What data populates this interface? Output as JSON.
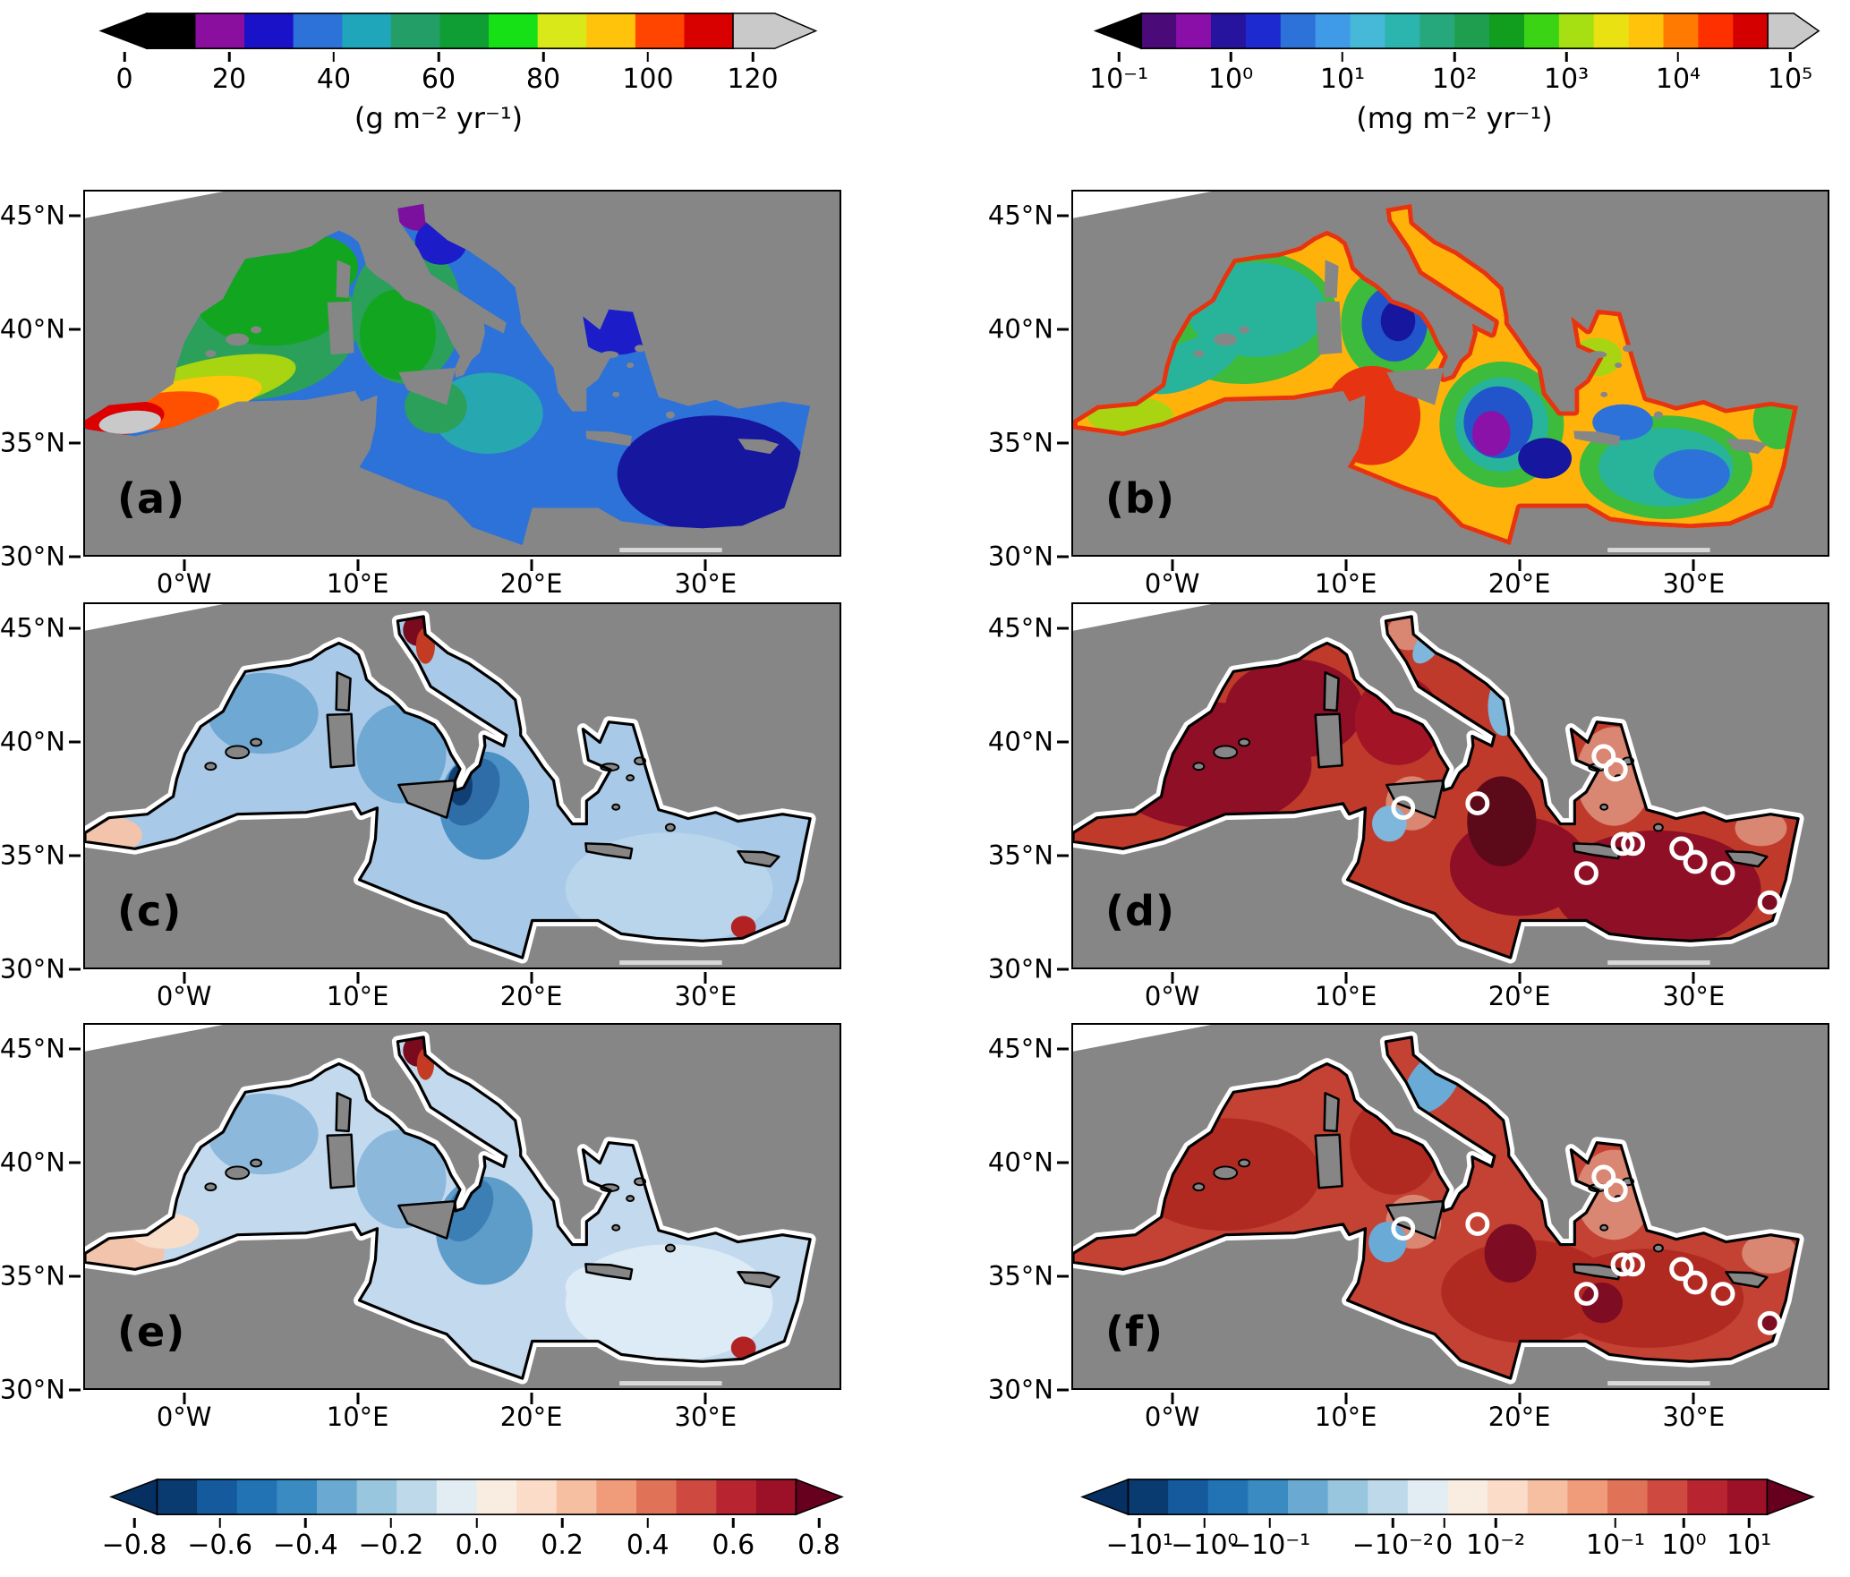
{
  "chart_data": {
    "type": "heatmap",
    "description": "Six-panel geographic raster maps of the Mediterranean Sea with four colorbars",
    "axes": {
      "x_ticks": [
        {
          "label": "0°W",
          "pos": 13.3
        },
        {
          "label": "10°E",
          "pos": 36.2
        },
        {
          "label": "20°E",
          "pos": 59.1
        },
        {
          "label": "30°E",
          "pos": 82.1
        }
      ],
      "y_ticks": [
        {
          "label": "45°N",
          "pos": 7.1
        },
        {
          "label": "40°N",
          "pos": 38.0
        },
        {
          "label": "35°N",
          "pos": 69.0
        },
        {
          "label": "30°N",
          "pos": 100.0
        }
      ]
    },
    "colorbars": {
      "top_left": {
        "units": "(g m⁻² yr⁻¹)",
        "range": [
          0,
          120
        ],
        "extend_under": "#000000",
        "extend_over": "#c9c9c9",
        "ticks": [
          {
            "label": "0",
            "pos": 0
          },
          {
            "label": "20",
            "pos": 16.67
          },
          {
            "label": "40",
            "pos": 33.33
          },
          {
            "label": "60",
            "pos": 50
          },
          {
            "label": "80",
            "pos": 66.67
          },
          {
            "label": "100",
            "pos": 83.33
          },
          {
            "label": "120",
            "pos": 100
          }
        ],
        "colors": [
          "#000000",
          "#8a0f9e",
          "#1a12c8",
          "#2d72d9",
          "#1fa6bb",
          "#239e66",
          "#0f9e33",
          "#16e016",
          "#d8e818",
          "#ffc30b",
          "#ff4500",
          "#d90000"
        ]
      },
      "top_right": {
        "units": "(mg m⁻² yr⁻¹)",
        "range_log10": [
          -1,
          5
        ],
        "extend_under": "#000000",
        "extend_over": "#c9c9c9",
        "ticks": [
          {
            "label": "10⁻¹",
            "pos": 0
          },
          {
            "label": "10⁰",
            "pos": 16.67
          },
          {
            "label": "10¹",
            "pos": 33.33
          },
          {
            "label": "10²",
            "pos": 50
          },
          {
            "label": "10³",
            "pos": 66.67
          },
          {
            "label": "10⁴",
            "pos": 83.33
          },
          {
            "label": "10⁵",
            "pos": 100
          }
        ],
        "colors": [
          "#4a0a78",
          "#8a0fa8",
          "#26139e",
          "#1c2ad0",
          "#2d72d9",
          "#3f9be8",
          "#46b8d8",
          "#2cb4ae",
          "#27a87c",
          "#1e9e4e",
          "#119e1e",
          "#3ad414",
          "#a6e013",
          "#eae112",
          "#ffc30b",
          "#ff7a00",
          "#ff3000",
          "#d40000"
        ]
      },
      "bottom_left": {
        "units": "",
        "range": [
          -0.8,
          0.8
        ],
        "extend_under": "#053061",
        "extend_over": "#67001f",
        "ticks": [
          {
            "label": "−0.8",
            "pos": 0
          },
          {
            "label": "−0.6",
            "pos": 12.5
          },
          {
            "label": "−0.4",
            "pos": 25
          },
          {
            "label": "−0.2",
            "pos": 37.5
          },
          {
            "label": "0.0",
            "pos": 50
          },
          {
            "label": "0.2",
            "pos": 62.5
          },
          {
            "label": "0.4",
            "pos": 75
          },
          {
            "label": "0.6",
            "pos": 87.5
          },
          {
            "label": "0.8",
            "pos": 100
          }
        ],
        "colors": [
          "#0a3b70",
          "#155a9c",
          "#2273b4",
          "#3a8bc2",
          "#6aaad2",
          "#97c6de",
          "#bedaea",
          "#e1edf3",
          "#f9ece1",
          "#fbdcc9",
          "#f7bfa1",
          "#f09c7b",
          "#e07258",
          "#ce4a41",
          "#b82531",
          "#9c1127"
        ]
      },
      "bottom_right": {
        "units": "",
        "scale": "symlog",
        "extend_under": "#053061",
        "extend_over": "#67001f",
        "ticks": [
          {
            "label": "−10¹",
            "pos": 5
          },
          {
            "label": "−10⁰",
            "pos": 14.5
          },
          {
            "label": "−10⁻¹",
            "pos": 24
          },
          {
            "label": "−10⁻²",
            "pos": 42
          },
          {
            "label": "0",
            "pos": 49.5
          },
          {
            "label": "10⁻²",
            "pos": 57
          },
          {
            "label": "10⁻¹",
            "pos": 74.5
          },
          {
            "label": "10⁰",
            "pos": 84.5
          },
          {
            "label": "10¹",
            "pos": 94
          }
        ],
        "colors": [
          "#0a3b70",
          "#155a9c",
          "#2273b4",
          "#3a8bc2",
          "#6aaad2",
          "#97c6de",
          "#bedaea",
          "#e1edf3",
          "#f9ece1",
          "#fbdcc9",
          "#f7bfa1",
          "#f09c7b",
          "#e07258",
          "#ce4a41",
          "#b82531",
          "#9c1127"
        ]
      },
      "panels": null
    },
    "panels_note": "patches = [lon, lat, rx_deg_lon, ry_deg_lat, color, rotation_deg]; markers = [lon, lat, filled]",
    "panels": [
      {
        "label": "(a)",
        "colorbar": "top_left",
        "base": "#2d72d9",
        "coast": false,
        "ring": null,
        "patches": [
          [
            3.5,
            40.3,
            6.5,
            3.4,
            "#2aa05a",
            0
          ],
          [
            5,
            41.5,
            4.5,
            2.2,
            "#12a51f",
            0
          ],
          [
            7.5,
            42.8,
            2.5,
            1.4,
            "#12a51f",
            0
          ],
          [
            12.8,
            40.8,
            3.2,
            3.2,
            "#2aa05a",
            0
          ],
          [
            12.3,
            39.8,
            2.2,
            2.0,
            "#12a51f",
            0
          ],
          [
            1.5,
            37.6,
            5.0,
            1.1,
            "#a8d411",
            -12
          ],
          [
            0,
            36.9,
            4.5,
            0.9,
            "#ffc40c",
            -10
          ],
          [
            -1.5,
            36.4,
            3.5,
            0.8,
            "#ff5000",
            -8
          ],
          [
            -3.6,
            36.1,
            2.4,
            0.75,
            "#dc0000",
            -6
          ],
          [
            -3.2,
            35.9,
            1.8,
            0.5,
            "#c9c9c9",
            -6
          ],
          [
            13.6,
            45.2,
            1.4,
            0.8,
            "#7b0f9e",
            0
          ],
          [
            14.8,
            43.9,
            1.5,
            1.0,
            "#1c1cc8",
            0
          ],
          [
            17.5,
            36.3,
            3.2,
            1.8,
            "#27a8b0",
            0
          ],
          [
            14.5,
            36.6,
            1.8,
            1.2,
            "#2aa05a",
            0
          ],
          [
            25,
            40.2,
            2.4,
            1.3,
            "#1c1cc8",
            0
          ],
          [
            30.5,
            33.6,
            5.5,
            2.6,
            "#16169f",
            0
          ]
        ],
        "markers": []
      },
      {
        "label": "(b)",
        "colorbar": "top_right",
        "base": "#ffb30a",
        "coast": false,
        "ring": "#e63312",
        "patches": [
          [
            4,
            40.6,
            5.5,
            3.0,
            "#3dbb3d",
            0
          ],
          [
            4.8,
            40.9,
            4.0,
            2.1,
            "#28b49a",
            0
          ],
          [
            1,
            38.5,
            3.1,
            1.0,
            "#28b49a",
            -25
          ],
          [
            12.7,
            40.3,
            3.0,
            2.6,
            "#3dbb3d",
            0
          ],
          [
            12.8,
            40.3,
            1.9,
            1.7,
            "#2255cc",
            0
          ],
          [
            13,
            40.4,
            1.0,
            0.9,
            "#16169f",
            0
          ],
          [
            11.5,
            36.2,
            2.8,
            2.2,
            "#e63312",
            0
          ],
          [
            19,
            35.8,
            3.6,
            2.8,
            "#3dbb3d",
            0
          ],
          [
            19,
            35.8,
            2.7,
            2.1,
            "#28b49a",
            0
          ],
          [
            18.8,
            35.9,
            2.0,
            1.6,
            "#2255cc",
            0
          ],
          [
            18.4,
            35.4,
            1.1,
            1.0,
            "#8a12a8",
            0
          ],
          [
            21.5,
            34.3,
            1.55,
            0.9,
            "#16169f",
            0
          ],
          [
            28.5,
            33.9,
            5.0,
            2.3,
            "#3dbb3d",
            0
          ],
          [
            28.5,
            33.9,
            3.9,
            1.75,
            "#28b49a",
            0
          ],
          [
            30,
            33.6,
            2.2,
            1.1,
            "#2d72d9",
            0
          ],
          [
            26,
            35.9,
            1.75,
            0.8,
            "#2d72d9",
            0
          ],
          [
            -2.5,
            36.2,
            2.5,
            0.85,
            "#a8d411",
            0
          ],
          [
            24.5,
            38.8,
            1.45,
            0.85,
            "#a8d411",
            0
          ],
          [
            35,
            36,
            1.45,
            1.3,
            "#3dbb3d",
            0
          ]
        ],
        "markers": []
      },
      {
        "label": "(c)",
        "colorbar": "bottom_left",
        "base": "#a9c9e8",
        "coast": true,
        "ring": null,
        "patches": [
          [
            4.5,
            41.3,
            3.2,
            1.8,
            "#6fa8d2",
            0
          ],
          [
            12.5,
            39.5,
            2.6,
            2.2,
            "#6fa8d2",
            0
          ],
          [
            17.3,
            37.2,
            2.6,
            2.4,
            "#4a90c4",
            0
          ],
          [
            16.6,
            37.8,
            1.4,
            1.6,
            "#2e6da8",
            30
          ],
          [
            15.9,
            38.1,
            0.72,
            0.9,
            "#123f73",
            0
          ],
          [
            28,
            33.5,
            6.0,
            2.5,
            "#b9d5ec",
            0
          ],
          [
            13.5,
            45.0,
            0.9,
            0.72,
            "#7a0a1e",
            0
          ],
          [
            13.9,
            44.3,
            0.55,
            0.8,
            "#c23b22",
            0
          ],
          [
            -4.3,
            35.9,
            1.8,
            0.8,
            "#f2c4ac",
            0
          ],
          [
            32.3,
            31.8,
            0.72,
            0.5,
            "#b22222",
            0
          ]
        ],
        "markers": []
      },
      {
        "label": "(d)",
        "colorbar": "bottom_right",
        "base": "#bf3a2b",
        "coast": true,
        "ring": null,
        "patches": [
          [
            2,
            39,
            6.0,
            2.8,
            "#8e0f26",
            0
          ],
          [
            7,
            41.5,
            4.0,
            2.2,
            "#8e0f26",
            0
          ],
          [
            13,
            41,
            2.5,
            2.0,
            "#a31426",
            0
          ],
          [
            20,
            34.5,
            4.0,
            2.2,
            "#8e0f26",
            0
          ],
          [
            19,
            36.5,
            2.0,
            2.0,
            "#5c0a1a",
            0
          ],
          [
            28,
            33.5,
            6.0,
            2.6,
            "#8e0f26",
            0
          ],
          [
            25.5,
            38.5,
            2.2,
            2.2,
            "#d98672",
            0
          ],
          [
            13.8,
            37.3,
            1.5,
            1.2,
            "#d98672",
            0
          ],
          [
            12.5,
            36.4,
            1.0,
            0.8,
            "#7eb6dc",
            0
          ],
          [
            19.1,
            41.6,
            0.9,
            1.3,
            "#7eb6dc",
            0
          ],
          [
            13.6,
            44.9,
            1.2,
            0.8,
            "#d98672",
            0
          ],
          [
            14.7,
            44.3,
            0.65,
            0.9,
            "#7eb6dc",
            35
          ],
          [
            34,
            36.2,
            1.5,
            0.8,
            "#d98672",
            0
          ]
        ],
        "markers": [
          [
            24.9,
            39.4,
            0
          ],
          [
            25.6,
            38.8,
            0
          ],
          [
            17.6,
            37.3,
            0
          ],
          [
            13.3,
            37.1,
            0
          ],
          [
            26.0,
            35.5,
            0
          ],
          [
            26.6,
            35.5,
            0
          ],
          [
            29.4,
            35.3,
            0
          ],
          [
            30.2,
            34.7,
            0
          ],
          [
            23.9,
            34.2,
            0
          ],
          [
            31.8,
            34.2,
            0
          ],
          [
            34.5,
            32.9,
            1
          ]
        ]
      },
      {
        "label": "(e)",
        "colorbar": "bottom_left",
        "base": "#c3d9ee",
        "coast": true,
        "ring": null,
        "patches": [
          [
            4.5,
            41.3,
            3.2,
            1.8,
            "#8cb8dc",
            0
          ],
          [
            12.5,
            39.3,
            2.6,
            2.2,
            "#8cb8dc",
            0
          ],
          [
            17.3,
            37.0,
            2.8,
            2.4,
            "#5e9cca",
            0
          ],
          [
            16.4,
            37.9,
            1.2,
            1.5,
            "#3c7fb5",
            30
          ],
          [
            28,
            33.8,
            6.0,
            2.6,
            "#dcebf5",
            0
          ],
          [
            24,
            34.5,
            2.0,
            1.0,
            "#dcebf5",
            0
          ],
          [
            13.5,
            45.0,
            0.9,
            0.72,
            "#7a0a1e",
            0
          ],
          [
            13.9,
            44.4,
            0.5,
            0.7,
            "#c23b22",
            0
          ],
          [
            -3.8,
            36.0,
            2.6,
            1.0,
            "#f2c4ac",
            0
          ],
          [
            -1.2,
            37.0,
            2.0,
            0.8,
            "#f8ddc9",
            0
          ],
          [
            32.3,
            31.8,
            0.72,
            0.5,
            "#b22222",
            0
          ]
        ],
        "markers": []
      },
      {
        "label": "(f)",
        "colorbar": "bottom_right",
        "base": "#c44233",
        "coast": true,
        "ring": null,
        "patches": [
          [
            3,
            39.5,
            5.5,
            2.5,
            "#b02a22",
            0
          ],
          [
            12.8,
            40.8,
            2.6,
            2.2,
            "#b02a22",
            0
          ],
          [
            20.5,
            34.3,
            5.0,
            2.3,
            "#b02a22",
            0
          ],
          [
            27.5,
            34,
            5.5,
            2.2,
            "#b02a22",
            0
          ],
          [
            19.5,
            36,
            1.5,
            1.3,
            "#7e0c23",
            0
          ],
          [
            24.8,
            33.8,
            1.2,
            0.9,
            "#7e0c23",
            0
          ],
          [
            25.5,
            38.6,
            2.2,
            2.0,
            "#d98672",
            0
          ],
          [
            15,
            43.6,
            1.3,
            1.6,
            "#6aaad6",
            38
          ],
          [
            13.9,
            37.4,
            1.6,
            1.2,
            "#d98672",
            0
          ],
          [
            12.4,
            36.5,
            1.1,
            0.9,
            "#6aaad6",
            0
          ],
          [
            34.5,
            36,
            1.6,
            0.9,
            "#d98672",
            0
          ]
        ],
        "markers": [
          [
            24.9,
            39.4,
            0
          ],
          [
            25.6,
            38.8,
            0
          ],
          [
            17.6,
            37.3,
            0
          ],
          [
            13.3,
            37.1,
            0
          ],
          [
            26.0,
            35.5,
            0
          ],
          [
            26.6,
            35.5,
            0
          ],
          [
            29.4,
            35.3,
            0
          ],
          [
            30.2,
            34.7,
            0
          ],
          [
            23.9,
            34.2,
            0
          ],
          [
            31.8,
            34.2,
            0
          ],
          [
            34.5,
            32.9,
            1
          ]
        ]
      }
    ],
    "land_color": "#868686",
    "marker_style": {
      "stroke": "#ffffff",
      "filled_color": "#7e0c23"
    }
  }
}
